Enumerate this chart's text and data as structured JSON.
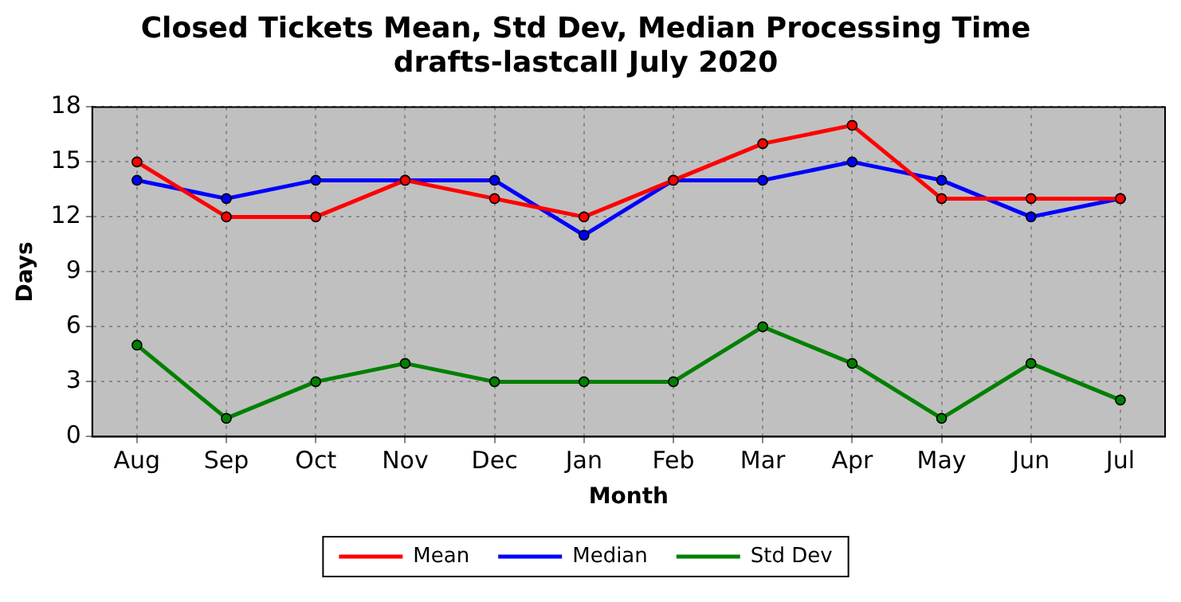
{
  "chart_data": {
    "type": "line",
    "title": "Closed Tickets Mean, Std Dev, Median Processing Time\ndrafts-lastcall July 2020",
    "xlabel": "Month",
    "ylabel": "Days",
    "categories": [
      "Aug",
      "Sep",
      "Oct",
      "Nov",
      "Dec",
      "Jan",
      "Feb",
      "Mar",
      "Apr",
      "May",
      "Jun",
      "Jul"
    ],
    "series": [
      {
        "name": "Mean",
        "color": "#ff0000",
        "values": [
          15,
          12,
          12,
          14,
          13,
          12,
          14,
          16,
          17,
          13,
          13,
          13
        ]
      },
      {
        "name": "Median",
        "color": "#0000ff",
        "values": [
          14,
          13,
          14,
          14,
          14,
          11,
          14,
          14,
          15,
          14,
          12,
          13
        ]
      },
      {
        "name": "Std Dev",
        "color": "#008000",
        "values": [
          5,
          1,
          3,
          4,
          3,
          3,
          3,
          6,
          4,
          1,
          4,
          2
        ]
      }
    ],
    "ylim": [
      0,
      18
    ],
    "yticks": [
      0,
      3,
      6,
      9,
      12,
      15,
      18
    ],
    "grid": true,
    "legend": "bottom",
    "marker": "circle",
    "line_style": "solid"
  }
}
